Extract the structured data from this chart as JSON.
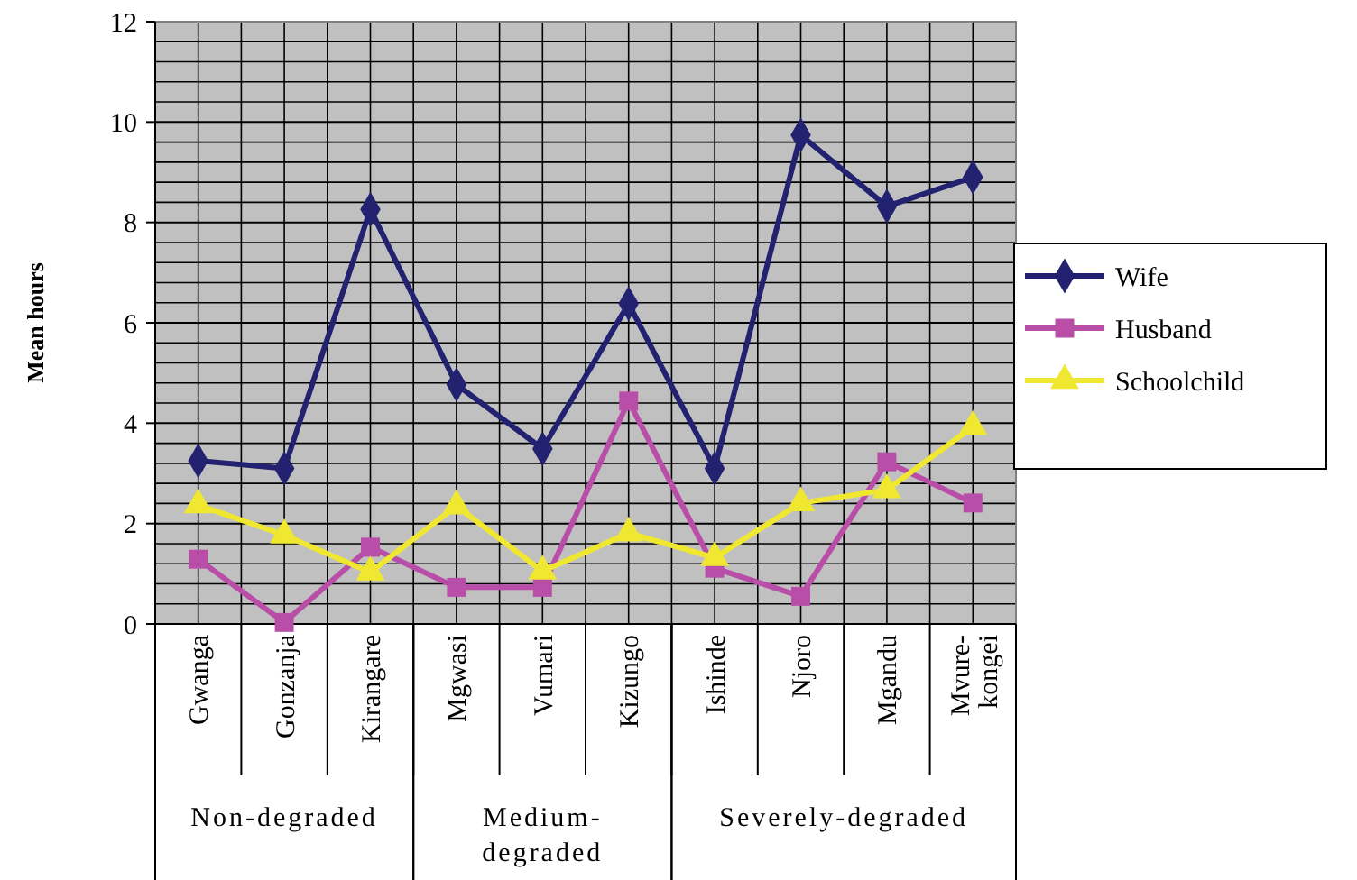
{
  "chart_data": {
    "type": "line",
    "ylabel": "Mean hours",
    "categories": [
      "Gwanga",
      "Gonzanja",
      "Kirangare",
      "Mgwasi",
      "Vumari",
      "Kizungo",
      "Ishinde",
      "Njoro",
      "Mgandu",
      "Mvure-kongei"
    ],
    "series": [
      {
        "name": "Wife",
        "color": "#222270",
        "marker": "diamond",
        "values": [
          3.25,
          3.1,
          8.26,
          4.77,
          3.49,
          6.38,
          3.1,
          9.74,
          8.32,
          8.9
        ]
      },
      {
        "name": "Husband",
        "color": "#b84ea8",
        "marker": "square",
        "values": [
          1.29,
          0.03,
          1.53,
          0.73,
          0.73,
          4.44,
          1.11,
          0.55,
          3.23,
          2.41
        ]
      },
      {
        "name": "Schoolchild",
        "color": "#f0e830",
        "marker": "triangle",
        "values": [
          2.37,
          1.77,
          1.03,
          2.35,
          1.05,
          1.81,
          1.32,
          2.41,
          2.67,
          3.93
        ]
      }
    ],
    "annotations": [
      "Non-degraded",
      "Medium-degraded",
      "Severely-degraded"
    ],
    "ylim": [
      0,
      12
    ],
    "yticks": [
      0,
      2,
      4,
      6,
      8,
      10,
      12
    ],
    "grid": true,
    "legend": "right",
    "line_style": "solid"
  }
}
